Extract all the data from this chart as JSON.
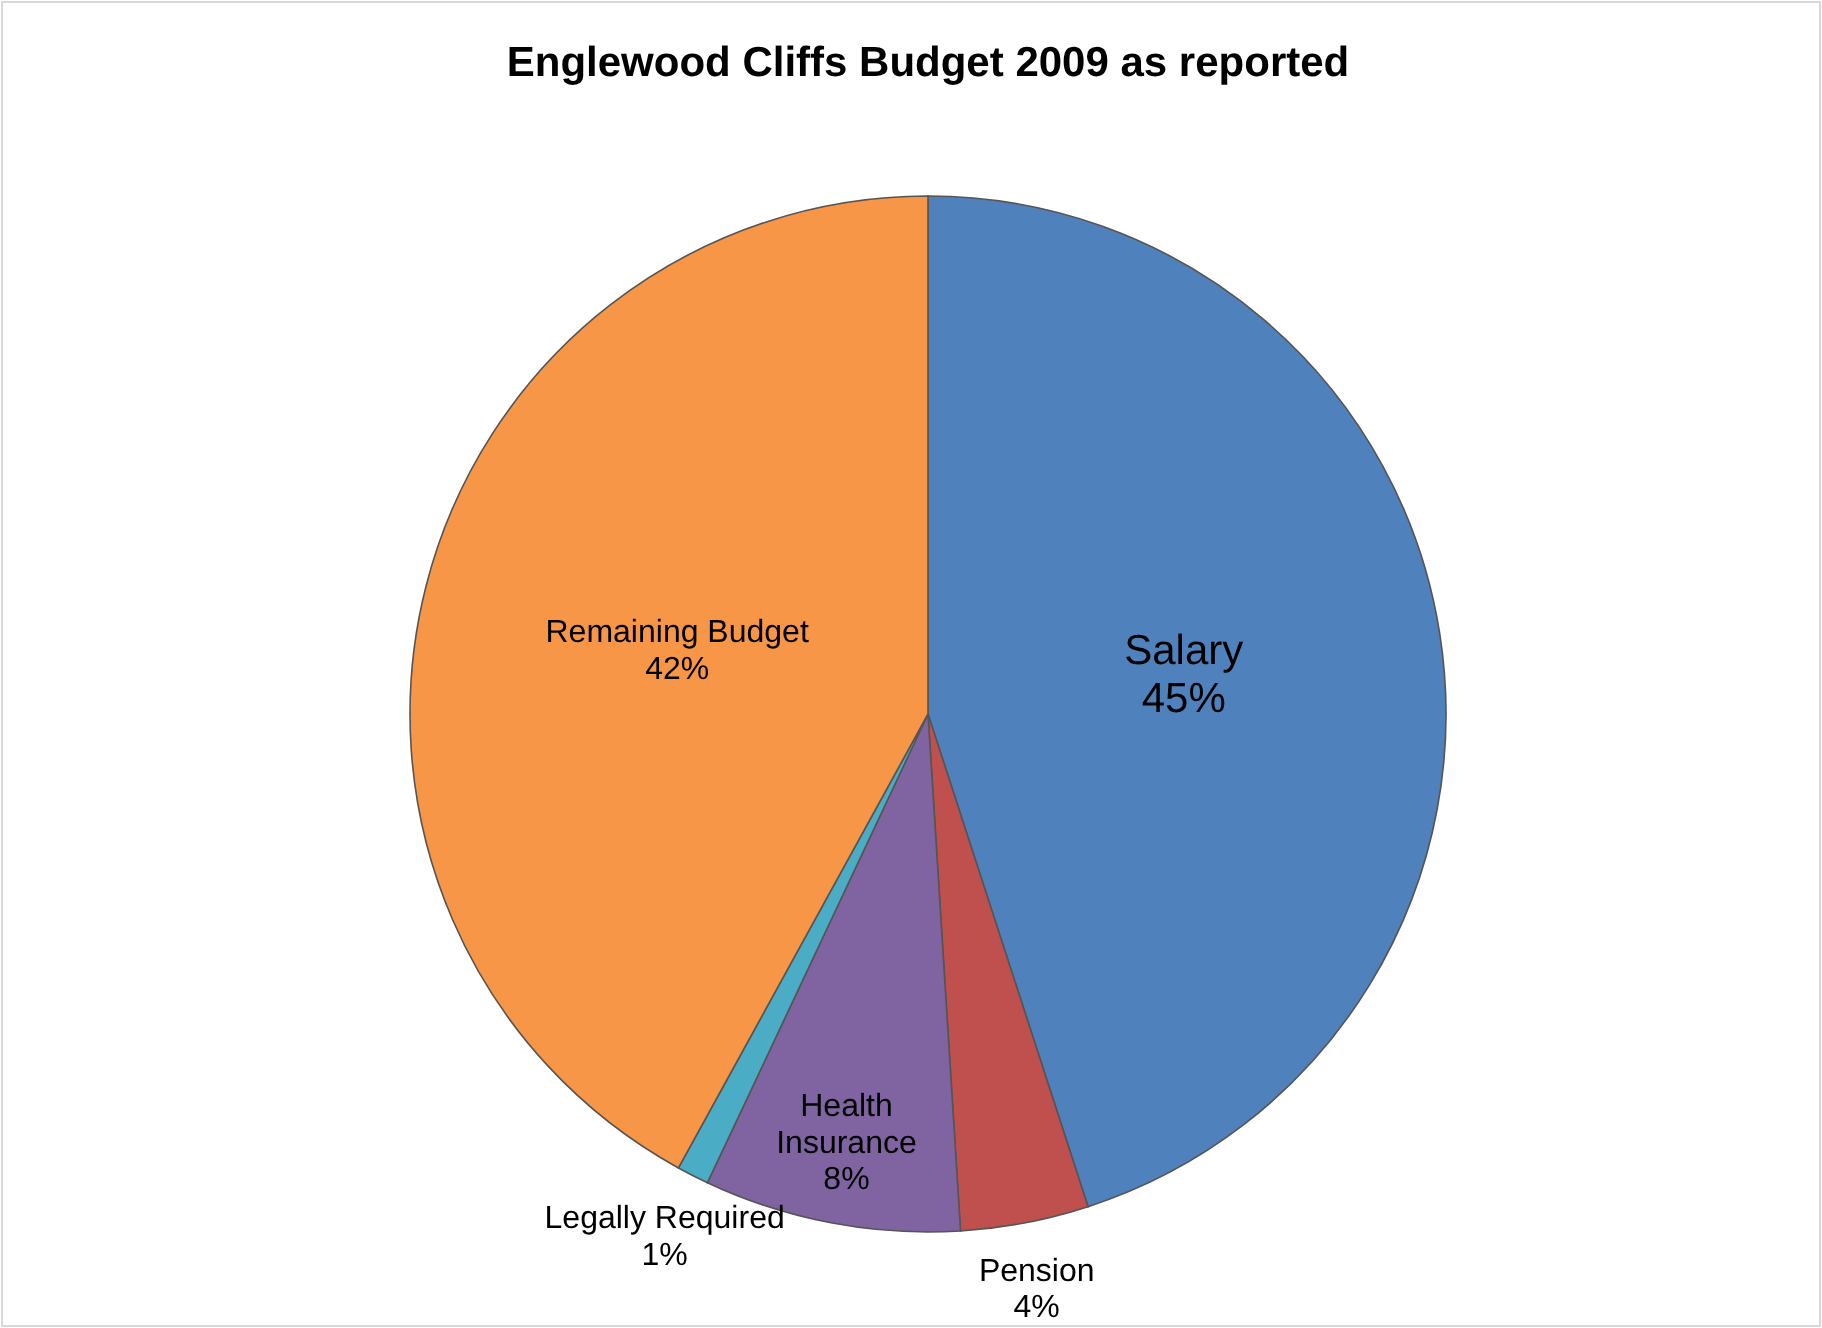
{
  "chart_data": {
    "type": "pie",
    "title": "Englewood Cliffs Budget 2009 as reported",
    "categories": [
      "Salary",
      "Pension",
      "Health Insurance",
      "Legally Required",
      "Remaining Budget"
    ],
    "values": [
      45,
      4,
      8,
      1,
      42
    ],
    "value_labels": [
      "45%",
      "4%",
      "8%",
      "1%",
      "42%"
    ],
    "colors": [
      "#4f81bd",
      "#c0504d",
      "#8064a2",
      "#4bacc6",
      "#f79646"
    ]
  }
}
